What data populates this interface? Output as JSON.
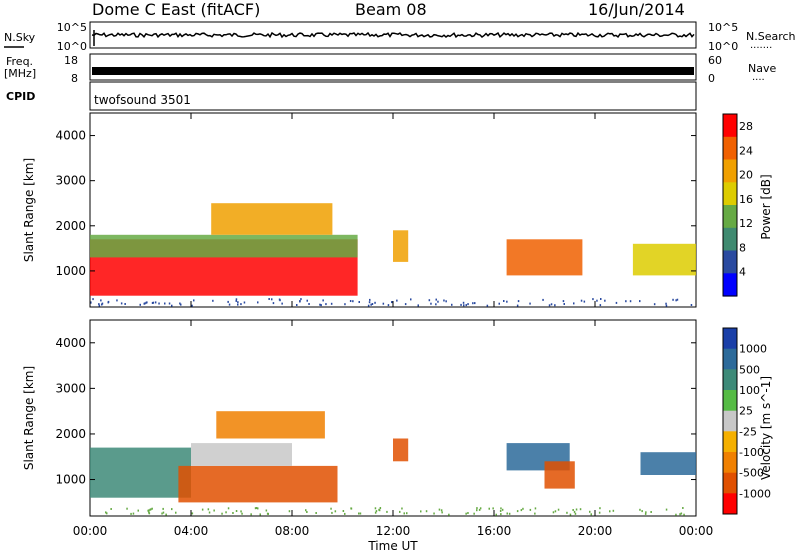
{
  "header": {
    "title": "Dome C East (fitACF)",
    "beam": "Beam 08",
    "date": "16/Jun/2014"
  },
  "strip": {
    "nsky_label": "N.Sky",
    "nsearch_label": "N.Search",
    "nsearch_dots": ".......",
    "left_ticks": [
      "10^5",
      "10^0"
    ],
    "right_ticks": [
      "10^5",
      "10^0"
    ],
    "freq_label": "Freq.",
    "freq_unit": "[MHz]",
    "freq_ticks": [
      "18",
      "8"
    ],
    "nave_label": "Nave",
    "nave_dots": "....",
    "nave_ticks": [
      "60",
      "0"
    ],
    "cpid_label": "CPID",
    "cpid_value": "twofsound 3501"
  },
  "colors": {
    "power": [
      "#0000ff",
      "#2a4aa0",
      "#3f8a70",
      "#66aa44",
      "#ddcc00",
      "#f0a000",
      "#f06000",
      "#ff0000"
    ],
    "velocity": [
      "#1a3fa8",
      "#2c6a9a",
      "#3d8a78",
      "#55bb44",
      "#c8c8c8",
      "#f5b000",
      "#f08000",
      "#e05000",
      "#ff0000"
    ]
  },
  "chart_data": [
    {
      "type": "heatmap",
      "panel": "power",
      "ylabel": "Slant Range [km]",
      "xlim": [
        "00:00",
        "24:00"
      ],
      "ylim": [
        200,
        4500
      ],
      "yticks": [
        "1000",
        "2000",
        "3000",
        "4000"
      ],
      "xticks": [
        "00:00",
        "04:00",
        "08:00",
        "12:00",
        "16:00",
        "20:00",
        "00:00"
      ],
      "colorbar": {
        "label": "Power [dB]",
        "ticks": [
          "4",
          "8",
          "12",
          "16",
          "20",
          "24",
          "28"
        ],
        "range": [
          0,
          30
        ]
      },
      "regions": [
        {
          "t0": 0.0,
          "t1": 10.6,
          "r0": 450,
          "r1": 1700,
          "value": 27
        },
        {
          "t0": 0.0,
          "t1": 10.6,
          "r0": 1300,
          "r1": 1800,
          "value": 12
        },
        {
          "t0": 4.8,
          "t1": 9.6,
          "r0": 1800,
          "r1": 2500,
          "value": 20
        },
        {
          "t0": 12.0,
          "t1": 12.6,
          "r0": 1200,
          "r1": 1900,
          "value": 22
        },
        {
          "t0": 16.5,
          "t1": 19.5,
          "r0": 900,
          "r1": 1700,
          "value": 25
        },
        {
          "t0": 21.5,
          "t1": 24.0,
          "r0": 900,
          "r1": 1600,
          "value": 18
        }
      ]
    },
    {
      "type": "heatmap",
      "panel": "velocity",
      "ylabel": "Slant Range [km]",
      "xlabel": "Time UT",
      "xlim": [
        "00:00",
        "24:00"
      ],
      "ylim": [
        200,
        4500
      ],
      "yticks": [
        "1000",
        "2000",
        "3000",
        "4000"
      ],
      "xticks": [
        "00:00",
        "04:00",
        "08:00",
        "12:00",
        "16:00",
        "20:00",
        "00:00"
      ],
      "colorbar": {
        "label": "Velocity [m s^-1]",
        "ticks": [
          "1000",
          "500",
          "100",
          "25",
          "-25",
          "-100",
          "-500",
          "-1000"
        ]
      },
      "regions": [
        {
          "t0": 0.0,
          "t1": 4.0,
          "r0": 600,
          "r1": 1700,
          "value": 100
        },
        {
          "t0": 3.5,
          "t1": 9.8,
          "r0": 500,
          "r1": 1300,
          "value": -300
        },
        {
          "t0": 4.0,
          "t1": 8.0,
          "r0": 1300,
          "r1": 1800,
          "value": 0
        },
        {
          "t0": 5.0,
          "t1": 9.3,
          "r0": 1900,
          "r1": 2500,
          "value": -200
        },
        {
          "t0": 12.0,
          "t1": 12.6,
          "r0": 1400,
          "r1": 1900,
          "value": -300
        },
        {
          "t0": 16.5,
          "t1": 19.0,
          "r0": 1200,
          "r1": 1800,
          "value": 200
        },
        {
          "t0": 18.0,
          "t1": 19.2,
          "r0": 800,
          "r1": 1400,
          "value": -300
        },
        {
          "t0": 21.8,
          "t1": 24.0,
          "r0": 1100,
          "r1": 1600,
          "value": 300
        }
      ]
    }
  ]
}
